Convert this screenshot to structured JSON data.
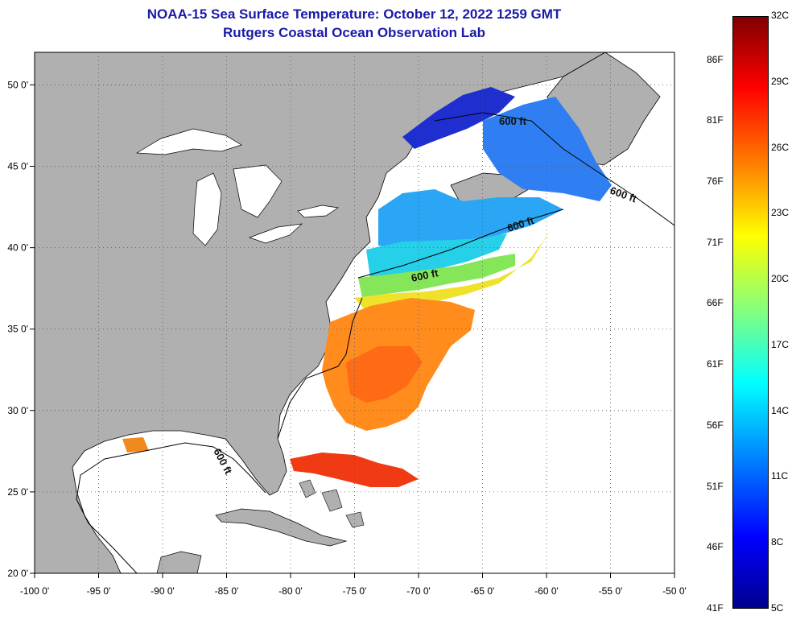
{
  "title": {
    "line1": "NOAA-15 Sea Surface Temperature:  October 12, 2022 1259 GMT",
    "line2": "Rutgers Coastal Ocean Observation Lab"
  },
  "map": {
    "lon_range": [
      -100,
      -50
    ],
    "lat_range": [
      20,
      52
    ],
    "lon_ticks": [
      {
        "value": -100,
        "label": "-100 0'"
      },
      {
        "value": -95,
        "label": "-95 0'"
      },
      {
        "value": -90,
        "label": "-90 0'"
      },
      {
        "value": -85,
        "label": "-85 0'"
      },
      {
        "value": -80,
        "label": "-80 0'"
      },
      {
        "value": -75,
        "label": "-75 0'"
      },
      {
        "value": -70,
        "label": "-70 0'"
      },
      {
        "value": -65,
        "label": "-65 0'"
      },
      {
        "value": -60,
        "label": "-60 0'"
      },
      {
        "value": -55,
        "label": "-55 0'"
      },
      {
        "value": -50,
        "label": "-50 0'"
      }
    ],
    "lat_ticks": [
      {
        "value": 50,
        "label": "50 0'"
      },
      {
        "value": 45,
        "label": "45 0'"
      },
      {
        "value": 40,
        "label": "40 0'"
      },
      {
        "value": 35,
        "label": "35 0'"
      },
      {
        "value": 30,
        "label": "30 0'"
      },
      {
        "value": 25,
        "label": "25 0'"
      },
      {
        "value": 20,
        "label": "20 0'"
      }
    ],
    "grid": "dotted",
    "land_color": "#b0b0b0",
    "contour_labels": [
      "600 ft",
      "600 ft",
      "600 ft",
      "600 ft",
      "600 ft"
    ]
  },
  "colorbar": {
    "range_c": [
      5,
      32
    ],
    "colormap": "jet",
    "celsius_labels": [
      {
        "value": 32,
        "label": "32C"
      },
      {
        "value": 29,
        "label": "29C"
      },
      {
        "value": 26,
        "label": "26C"
      },
      {
        "value": 23,
        "label": "23C"
      },
      {
        "value": 20,
        "label": "20C"
      },
      {
        "value": 17,
        "label": "17C"
      },
      {
        "value": 14,
        "label": "14C"
      },
      {
        "value": 11,
        "label": "11C"
      },
      {
        "value": 8,
        "label": "8C"
      },
      {
        "value": 5,
        "label": "5C"
      }
    ],
    "fahrenheit_labels": [
      {
        "value": 86,
        "label": "86F"
      },
      {
        "value": 81,
        "label": "81F"
      },
      {
        "value": 76,
        "label": "76F"
      },
      {
        "value": 71,
        "label": "71F"
      },
      {
        "value": 66,
        "label": "66F"
      },
      {
        "value": 61,
        "label": "61F"
      },
      {
        "value": 56,
        "label": "56F"
      },
      {
        "value": 51,
        "label": "51F"
      },
      {
        "value": 46,
        "label": "46F"
      },
      {
        "value": 41,
        "label": "41F"
      }
    ]
  }
}
